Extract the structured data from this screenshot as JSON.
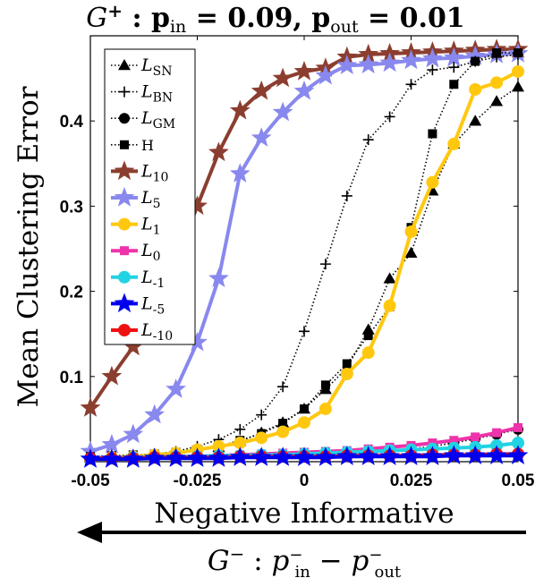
{
  "chart_data": {
    "type": "line",
    "title": "G⁺ : p_in = 0.09, p_out = 0.01",
    "xlabel": "Negative Informative",
    "ylabel": "Mean Clustering Error",
    "bottom_label": "G⁻ : p⁻_in − p⁻_out",
    "xlim": [
      -0.05,
      0.05
    ],
    "ylim": [
      0,
      0.5
    ],
    "xticks": [
      -0.05,
      -0.025,
      0,
      0.025,
      0.05
    ],
    "xtick_labels": [
      "-0.05",
      "-0.025",
      "0",
      "0.025",
      "0.05"
    ],
    "yticks": [
      0.1,
      0.2,
      0.3,
      0.4
    ],
    "ytick_labels": [
      "0.1",
      "0.2",
      "0.3",
      "0.4"
    ],
    "legend_position": "top-left",
    "x": [
      -0.05,
      -0.045,
      -0.04,
      -0.035,
      -0.03,
      -0.025,
      -0.02,
      -0.015,
      -0.01,
      -0.005,
      0,
      0.005,
      0.01,
      0.015,
      0.02,
      0.025,
      0.03,
      0.035,
      0.04,
      0.045,
      0.05
    ],
    "series": [
      {
        "name": "L_SN",
        "label_main": "L",
        "label_sub": "SN",
        "color": "#000000",
        "marker": "triangle",
        "style": "dotted",
        "values": [
          0.005,
          0.006,
          0.007,
          0.008,
          0.01,
          0.013,
          0.017,
          0.024,
          0.034,
          0.046,
          0.062,
          0.085,
          0.11,
          0.155,
          0.215,
          0.245,
          0.318,
          0.373,
          0.4,
          0.423,
          0.44
        ]
      },
      {
        "name": "L_BN",
        "label_main": "L",
        "label_sub": "BN",
        "color": "#000000",
        "marker": "plus",
        "style": "dotted",
        "values": [
          0.005,
          0.006,
          0.007,
          0.009,
          0.012,
          0.018,
          0.026,
          0.038,
          0.055,
          0.088,
          0.153,
          0.232,
          0.312,
          0.378,
          0.405,
          0.443,
          0.46,
          0.463,
          0.47,
          0.475,
          0.478
        ]
      },
      {
        "name": "L_GM",
        "label_main": "L",
        "label_sub": "GM",
        "color": "#000000",
        "marker": "circle",
        "style": "dotted",
        "values": [
          0.004,
          0.004,
          0.004,
          0.005,
          0.005,
          0.005,
          0.006,
          0.006,
          0.007,
          0.007,
          0.008,
          0.009,
          0.01,
          0.011,
          0.013,
          0.015,
          0.018,
          0.022,
          0.027,
          0.032,
          0.038
        ]
      },
      {
        "name": "H",
        "label_main": "H",
        "label_sub": "",
        "color": "#000000",
        "marker": "square",
        "style": "dotted",
        "values": [
          0.006,
          0.007,
          0.008,
          0.009,
          0.011,
          0.014,
          0.018,
          0.025,
          0.033,
          0.045,
          0.062,
          0.09,
          0.115,
          0.148,
          0.182,
          0.275,
          0.385,
          0.443,
          0.47,
          0.48,
          0.48
        ]
      },
      {
        "name": "L_10",
        "label_main": "L",
        "label_sub": "10",
        "color": "#8B3E2F",
        "marker": "star",
        "style": "solid",
        "values": [
          0.063,
          0.1,
          0.135,
          0.185,
          0.235,
          0.3,
          0.363,
          0.412,
          0.435,
          0.45,
          0.458,
          0.462,
          0.475,
          0.478,
          0.479,
          0.48,
          0.481,
          0.482,
          0.483,
          0.484,
          0.484
        ]
      },
      {
        "name": "L_5",
        "label_main": "L",
        "label_sub": "5",
        "color": "#8888EE",
        "marker": "star",
        "style": "solid",
        "values": [
          0.012,
          0.02,
          0.032,
          0.055,
          0.085,
          0.14,
          0.215,
          0.338,
          0.38,
          0.41,
          0.435,
          0.453,
          0.465,
          0.466,
          0.468,
          0.471,
          0.473,
          0.474,
          0.476,
          0.478,
          0.479
        ]
      },
      {
        "name": "L_1",
        "label_main": "L",
        "label_sub": "1",
        "color": "#FFC80F",
        "marker": "circle",
        "style": "solid",
        "values": [
          0.004,
          0.005,
          0.006,
          0.008,
          0.01,
          0.014,
          0.018,
          0.022,
          0.028,
          0.035,
          0.046,
          0.062,
          0.103,
          0.128,
          0.183,
          0.27,
          0.328,
          0.373,
          0.437,
          0.445,
          0.458
        ]
      },
      {
        "name": "L_0",
        "label_main": "L",
        "label_sub": "0",
        "color": "#EE33AA",
        "marker": "square",
        "style": "solid",
        "values": [
          0.004,
          0.004,
          0.005,
          0.005,
          0.006,
          0.006,
          0.007,
          0.008,
          0.009,
          0.01,
          0.011,
          0.012,
          0.013,
          0.015,
          0.017,
          0.019,
          0.022,
          0.025,
          0.029,
          0.034,
          0.04
        ]
      },
      {
        "name": "L_-1",
        "label_main": "L",
        "label_sub": "-1",
        "color": "#22D3E3",
        "marker": "circle",
        "style": "solid",
        "values": [
          0.004,
          0.004,
          0.005,
          0.005,
          0.006,
          0.006,
          0.007,
          0.007,
          0.008,
          0.008,
          0.009,
          0.01,
          0.011,
          0.012,
          0.013,
          0.014,
          0.015,
          0.016,
          0.017,
          0.019,
          0.022
        ]
      },
      {
        "name": "L_-5",
        "label_main": "L",
        "label_sub": "-5",
        "color": "#0000EE",
        "marker": "star",
        "style": "solid",
        "values": [
          0.003,
          0.003,
          0.003,
          0.004,
          0.004,
          0.004,
          0.004,
          0.005,
          0.005,
          0.005,
          0.005,
          0.005,
          0.006,
          0.006,
          0.006,
          0.006,
          0.006,
          0.007,
          0.007,
          0.007,
          0.007
        ]
      },
      {
        "name": "L_-10",
        "label_main": "L",
        "label_sub": "-10",
        "color": "#EE1111",
        "marker": "circle",
        "style": "solid",
        "values": [
          0.004,
          0.004,
          0.004,
          0.005,
          0.005,
          0.005,
          0.005,
          0.006,
          0.006,
          0.006,
          0.006,
          0.006,
          0.007,
          0.007,
          0.007,
          0.007,
          0.008,
          0.008,
          0.008,
          0.009,
          0.009
        ]
      }
    ]
  }
}
